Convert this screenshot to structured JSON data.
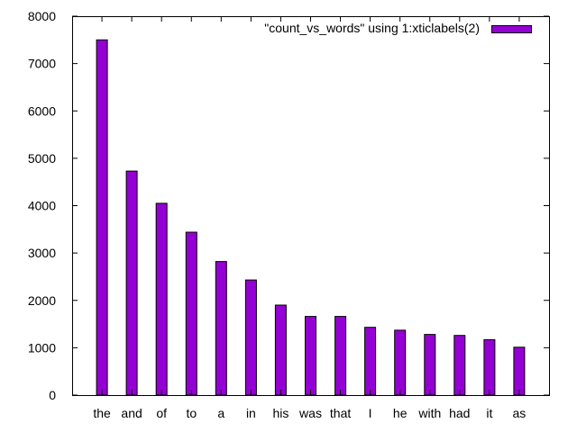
{
  "chart_data": {
    "type": "bar",
    "categories": [
      "the",
      "and",
      "of",
      "to",
      "a",
      "in",
      "his",
      "was",
      "that",
      "I",
      "he",
      "with",
      "had",
      "it",
      "as"
    ],
    "series": [
      {
        "name": "\"count_vs_words\" using 1:xticlabels(2)",
        "values": [
          7500,
          4730,
          4050,
          3440,
          2820,
          2430,
          1900,
          1660,
          1660,
          1430,
          1370,
          1280,
          1260,
          1170,
          1010
        ],
        "color": "#9400d3"
      }
    ],
    "ylim": [
      0,
      8000
    ],
    "yticks": [
      0,
      1000,
      2000,
      3000,
      4000,
      5000,
      6000,
      7000,
      8000
    ],
    "grid": false,
    "legend_position": "top-right",
    "xlabel": "",
    "ylabel": "",
    "title": ""
  }
}
